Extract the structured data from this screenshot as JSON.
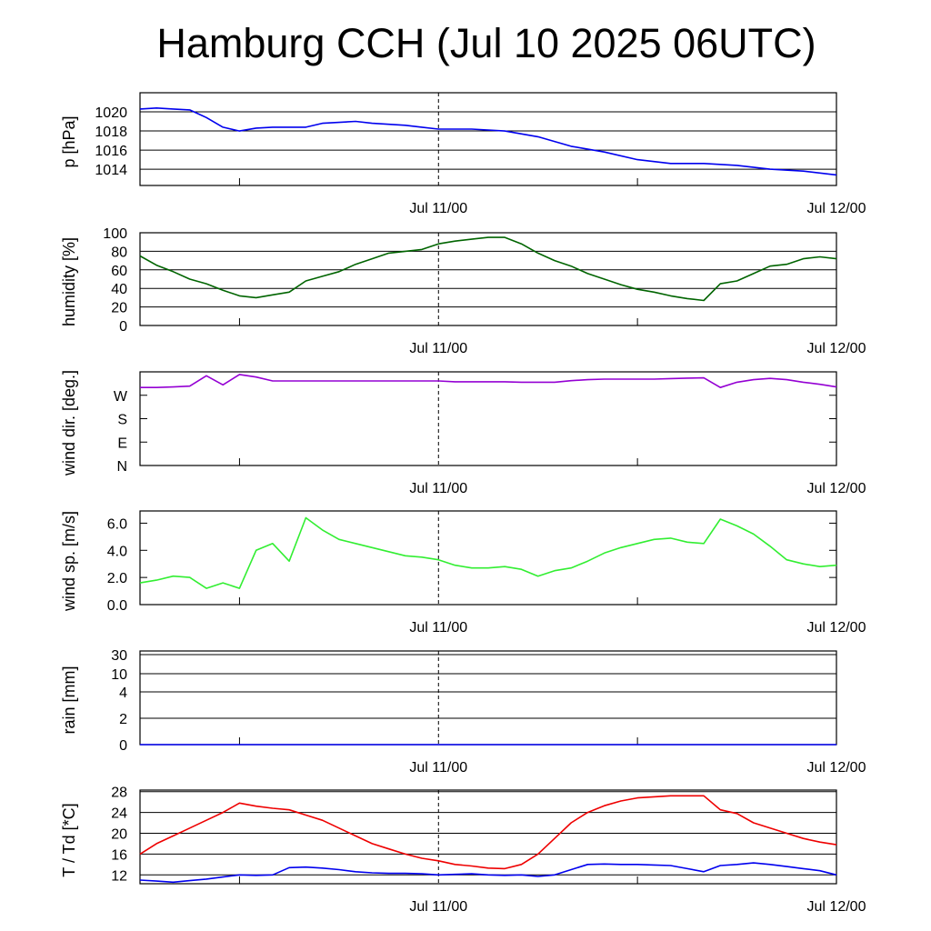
{
  "title": "Hamburg CCH (Jul 10 2025 06UTC)",
  "chart_data": [
    {
      "type": "line",
      "ylabel": "p [hPa]",
      "y_ticks": [
        "1020",
        "1018",
        "1016",
        "1014"
      ],
      "y_tick_values": [
        1020,
        1018,
        1016,
        1014
      ],
      "ylim": [
        1012.3,
        1022.0
      ],
      "x_tick_labels": [
        "Jul 11/00",
        "Jul 12/00"
      ],
      "grid": true,
      "series": [
        {
          "color": "#0000ee",
          "x": [
            0,
            1,
            2,
            3,
            4,
            5,
            6,
            7,
            8,
            9,
            10,
            11,
            12,
            13,
            14,
            15,
            16,
            17,
            18,
            20,
            22,
            24,
            26,
            28,
            30,
            32,
            34,
            36,
            38,
            40,
            42
          ],
          "y": [
            1020.3,
            1020.4,
            1020.3,
            1020.2,
            1019.4,
            1018.4,
            1018.0,
            1018.3,
            1018.4,
            1018.4,
            1018.4,
            1018.8,
            1018.9,
            1019.0,
            1018.8,
            1018.7,
            1018.6,
            1018.4,
            1018.2,
            1018.2,
            1018.0,
            1017.4,
            1016.4,
            1015.8,
            1015.0,
            1014.6,
            1014.6,
            1014.4,
            1014.0,
            1013.8,
            1013.4
          ]
        }
      ]
    },
    {
      "type": "line",
      "ylabel": "humidity [%]",
      "y_ticks": [
        "100",
        "80",
        "60",
        "40",
        "20",
        "0"
      ],
      "y_tick_values": [
        100,
        80,
        60,
        40,
        20,
        0
      ],
      "ylim": [
        0,
        100
      ],
      "x_tick_labels": [
        "Jul 11/00",
        "Jul 12/00"
      ],
      "grid": true,
      "series": [
        {
          "color": "#006400",
          "x": [
            0,
            1,
            2,
            3,
            4,
            5,
            6,
            7,
            8,
            9,
            10,
            11,
            12,
            13,
            14,
            15,
            16,
            17,
            18,
            19,
            20,
            21,
            22,
            23,
            24,
            25,
            26,
            27,
            28,
            29,
            30,
            31,
            32,
            33,
            34,
            35,
            36,
            37,
            38,
            39,
            40,
            41,
            42
          ],
          "y": [
            75,
            65,
            58,
            50,
            45,
            38,
            32,
            30,
            33,
            36,
            48,
            53,
            58,
            66,
            72,
            78,
            80,
            82,
            88,
            91,
            93,
            95,
            95,
            88,
            78,
            70,
            64,
            56,
            50,
            44,
            39,
            36,
            32,
            29,
            27,
            45,
            48,
            56,
            64,
            66,
            72,
            74,
            72
          ]
        }
      ]
    },
    {
      "type": "line",
      "ylabel": "wind dir. [deg.]",
      "y_ticks": [
        "W",
        "S",
        "E",
        "N"
      ],
      "y_tick_values": [
        270,
        180,
        90,
        0
      ],
      "ylim": [
        0,
        360
      ],
      "x_tick_labels": [
        "Jul 11/00",
        "Jul 12/00"
      ],
      "grid": false,
      "series": [
        {
          "color": "#9400d3",
          "x": [
            0,
            1,
            2,
            3,
            4,
            5,
            6,
            7,
            8,
            9,
            10,
            11,
            12,
            13,
            14,
            15,
            16,
            17,
            18,
            19,
            20,
            21,
            22,
            23,
            24,
            25,
            26,
            27,
            28,
            29,
            30,
            31,
            32,
            33,
            34,
            35,
            36,
            37,
            38,
            39,
            40,
            41,
            42
          ],
          "y": [
            300,
            300,
            302,
            305,
            345,
            310,
            350,
            340,
            325,
            325,
            325,
            325,
            325,
            325,
            325,
            325,
            325,
            325,
            325,
            322,
            322,
            322,
            322,
            320,
            320,
            320,
            326,
            330,
            332,
            332,
            332,
            332,
            334,
            336,
            337,
            300,
            320,
            330,
            335,
            330,
            320,
            312,
            302
          ]
        }
      ]
    },
    {
      "type": "line",
      "ylabel": "wind sp. [m/s]",
      "y_ticks": [
        "6.0",
        "4.0",
        "2.0",
        "0.0"
      ],
      "y_tick_values": [
        6,
        4,
        2,
        0
      ],
      "ylim": [
        0,
        6.9
      ],
      "x_tick_labels": [
        "Jul 11/00",
        "Jul 12/00"
      ],
      "grid": false,
      "series": [
        {
          "color": "#32ee32",
          "x": [
            0,
            1,
            2,
            3,
            4,
            5,
            6,
            7,
            8,
            9,
            10,
            11,
            12,
            13,
            14,
            15,
            16,
            17,
            18,
            19,
            20,
            21,
            22,
            23,
            24,
            25,
            26,
            27,
            28,
            29,
            30,
            31,
            32,
            33,
            34,
            35,
            36,
            37,
            38,
            39,
            40,
            41,
            42
          ],
          "y": [
            1.6,
            1.8,
            2.1,
            2.0,
            1.2,
            1.6,
            1.2,
            4.0,
            4.5,
            3.2,
            6.4,
            5.5,
            4.8,
            4.5,
            4.2,
            3.9,
            3.6,
            3.5,
            3.3,
            2.9,
            2.7,
            2.7,
            2.8,
            2.6,
            2.1,
            2.5,
            2.7,
            3.2,
            3.8,
            4.2,
            4.5,
            4.8,
            4.9,
            4.6,
            4.5,
            6.3,
            5.8,
            5.2,
            4.3,
            3.3,
            3.0,
            2.8,
            2.9
          ]
        }
      ]
    },
    {
      "type": "line",
      "ylabel": "rain [mm]",
      "y_ticks": [
        "30",
        "10",
        "4",
        "2",
        "0"
      ],
      "y_tick_values": [
        30,
        10,
        4,
        2,
        0
      ],
      "ylim": [
        0,
        30
      ],
      "x_tick_labels": [
        "Jul 11/00",
        "Jul 12/00"
      ],
      "grid": true,
      "series": [
        {
          "color": "#0000ee",
          "x": [
            0,
            42
          ],
          "y": [
            0,
            0
          ]
        }
      ]
    },
    {
      "type": "line",
      "ylabel": "T / Td [*C]",
      "y_ticks": [
        "28",
        "24",
        "20",
        "16",
        "12"
      ],
      "y_tick_values": [
        28,
        24,
        20,
        16,
        12
      ],
      "ylim": [
        10.3,
        28.3
      ],
      "x_tick_labels": [
        "Jul 11/00",
        "Jul 12/00"
      ],
      "grid": true,
      "series": [
        {
          "color": "#ee0000",
          "x": [
            0,
            1,
            2,
            3,
            4,
            5,
            6,
            7,
            8,
            9,
            10,
            11,
            12,
            13,
            14,
            15,
            16,
            17,
            18,
            19,
            20,
            21,
            22,
            23,
            24,
            25,
            26,
            27,
            28,
            29,
            30,
            31,
            32,
            33,
            34,
            35,
            36,
            37,
            38,
            39,
            40,
            41,
            42
          ],
          "y": [
            16,
            18,
            19.5,
            21,
            22.5,
            24,
            25.8,
            25.2,
            24.8,
            24.5,
            23.5,
            22.5,
            21,
            19.5,
            18,
            17,
            16,
            15.2,
            14.7,
            14,
            13.7,
            13.3,
            13.2,
            14,
            16,
            19,
            22,
            24,
            25.3,
            26.2,
            26.8,
            27,
            27.2,
            27.2,
            27.2,
            24.5,
            23.8,
            22,
            21,
            20,
            19,
            18.3,
            17.8
          ]
        },
        {
          "color": "#0000ee",
          "x": [
            0,
            1,
            2,
            3,
            4,
            5,
            6,
            7,
            8,
            9,
            10,
            11,
            12,
            13,
            14,
            15,
            16,
            17,
            18,
            19,
            20,
            21,
            22,
            23,
            24,
            25,
            26,
            27,
            28,
            29,
            30,
            31,
            32,
            33,
            34,
            35,
            36,
            37,
            38,
            39,
            40,
            41,
            42
          ],
          "y": [
            11,
            10.8,
            10.6,
            10.9,
            11.2,
            11.6,
            12.0,
            11.9,
            12.0,
            13.4,
            13.5,
            13.3,
            13.0,
            12.6,
            12.4,
            12.3,
            12.3,
            12.2,
            12.0,
            12.1,
            12.2,
            12.0,
            11.9,
            12.0,
            11.7,
            12.0,
            13.0,
            14.0,
            14.1,
            14.0,
            14.0,
            13.9,
            13.8,
            13.2,
            12.6,
            13.8,
            14.0,
            14.3,
            14.0,
            13.6,
            13.2,
            12.8,
            12.0
          ]
        }
      ]
    }
  ]
}
